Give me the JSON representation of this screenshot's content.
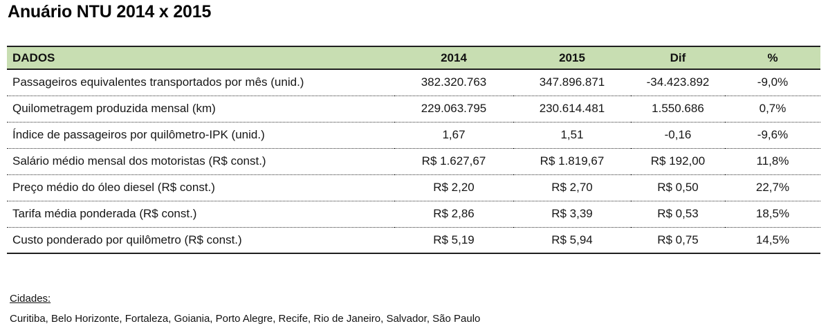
{
  "title": "Anuário NTU 2014 x 2015",
  "colors": {
    "header_bg": "#c8deb2",
    "border_dark": "#1f1f1f",
    "text": "#161616"
  },
  "table": {
    "columns": [
      "DADOS",
      "2014",
      "2015",
      "Dif",
      "%"
    ],
    "rows": [
      {
        "label": "Passageiros equivalentes transportados por mês (unid.)",
        "v2014": "382.320.763",
        "v2015": "347.896.871",
        "dif": "-34.423.892",
        "pct": "-9,0%"
      },
      {
        "label": "Quilometragem produzida mensal (km)",
        "v2014": "229.063.795",
        "v2015": "230.614.481",
        "dif": "1.550.686",
        "pct": "0,7%"
      },
      {
        "label": "Índice de passageiros por quilômetro-IPK (unid.)",
        "v2014": "1,67",
        "v2015": "1,51",
        "dif": "-0,16",
        "pct": "-9,6%"
      },
      {
        "label": "Salário médio mensal dos motoristas (R$ const.)",
        "v2014": "R$ 1.627,67",
        "v2015": "R$ 1.819,67",
        "dif": "R$ 192,00",
        "pct": "11,8%"
      },
      {
        "label": "Preço médio do óleo diesel (R$ const.)",
        "v2014": "R$ 2,20",
        "v2015": "R$ 2,70",
        "dif": "R$ 0,50",
        "pct": "22,7%"
      },
      {
        "label": "Tarifa média ponderada (R$ const.)",
        "v2014": "R$ 2,86",
        "v2015": "R$ 3,39",
        "dif": "R$ 0,53",
        "pct": "18,5%"
      },
      {
        "label": "Custo ponderado por quilômetro (R$ const.)",
        "v2014": "R$ 5,19",
        "v2015": "R$ 5,94",
        "dif": "R$ 0,75",
        "pct": "14,5%"
      }
    ]
  },
  "footer": {
    "cities_label": "Cidades:",
    "cities": "Curitiba, Belo Horizonte, Fortaleza, Goiania, Porto Alegre, Recife, Rio de Janeiro, Salvador, São Paulo"
  }
}
